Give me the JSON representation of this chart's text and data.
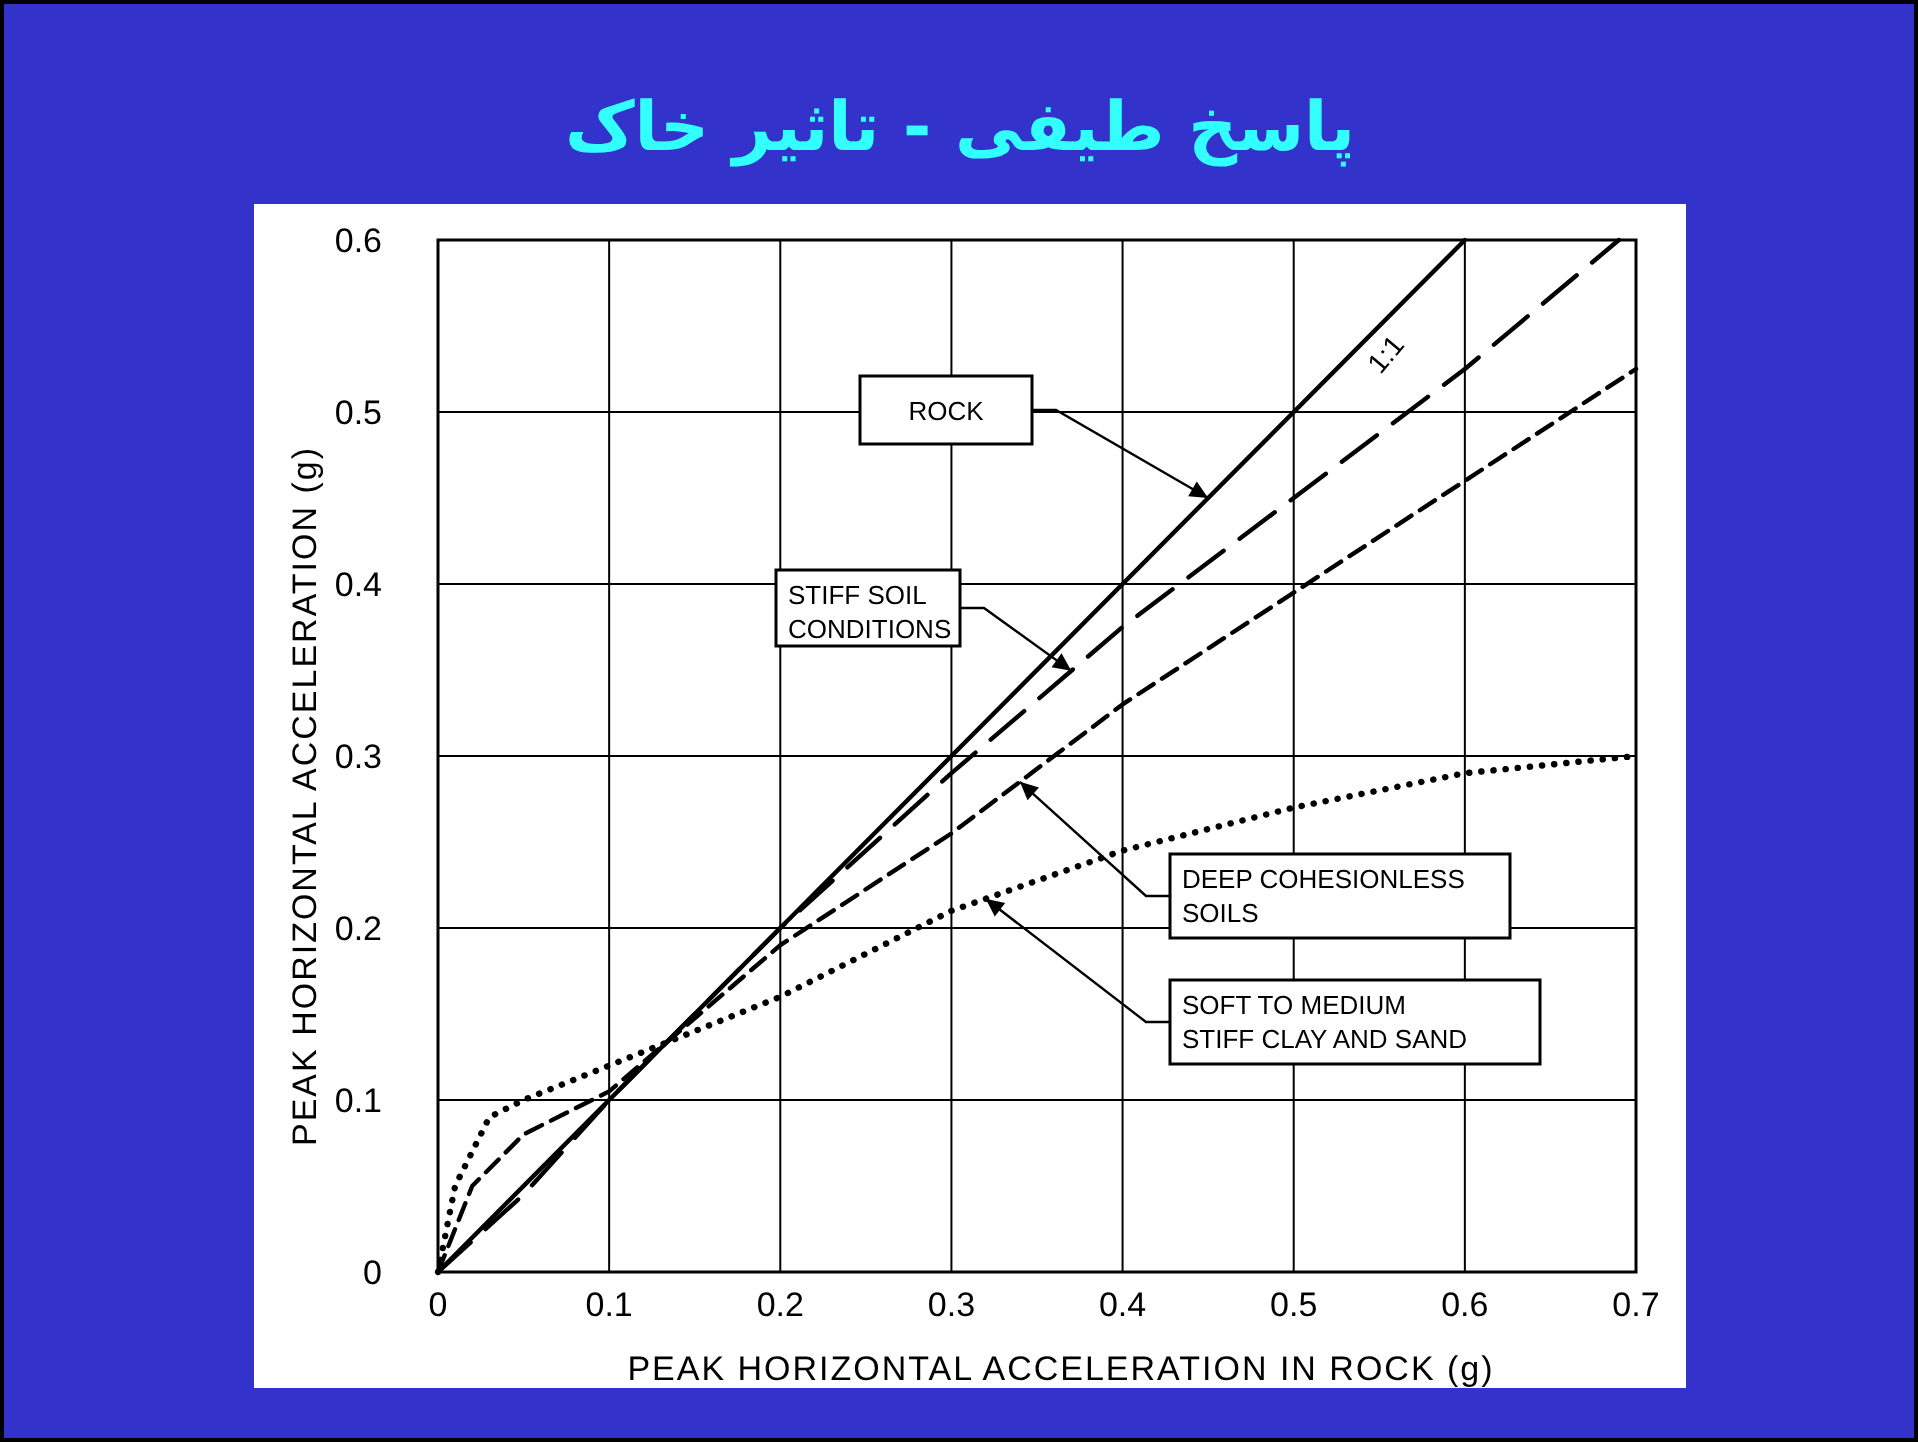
{
  "chart_data": {
    "type": "line",
    "title": "پاسخ طیفی - تاثیر خاک",
    "xlabel": "PEAK HORIZONTAL ACCELERATION IN ROCK (g)",
    "ylabel": "PEAK HORIZONTAL ACCELERATION (g)",
    "xlim": [
      0,
      0.7
    ],
    "ylim": [
      0,
      0.6
    ],
    "xticks": [
      0,
      0.1,
      0.2,
      0.3,
      0.4,
      0.5,
      0.6,
      0.7
    ],
    "yticks": [
      0,
      0.1,
      0.2,
      0.3,
      0.4,
      0.5,
      0.6
    ],
    "grid": true,
    "annotations": [
      {
        "text": "1:1",
        "x": 0.53,
        "y": 0.53
      }
    ],
    "series": [
      {
        "name": "ROCK",
        "color": "#000000",
        "line_style": "solid",
        "x": [
          0,
          0.6
        ],
        "values": [
          0,
          0.6
        ]
      },
      {
        "name": "STIFF SOIL CONDITIONS",
        "color": "#000000",
        "line_style": "dashed",
        "x": [
          0,
          0.05,
          0.1,
          0.2,
          0.3,
          0.4,
          0.5,
          0.6,
          0.69
        ],
        "values": [
          0,
          0.045,
          0.1,
          0.2,
          0.29,
          0.375,
          0.45,
          0.525,
          0.6
        ]
      },
      {
        "name": "DEEP COHESIONLESS SOILS",
        "color": "#000000",
        "line_style": "dashed",
        "x": [
          0,
          0.02,
          0.05,
          0.1,
          0.2,
          0.3,
          0.4,
          0.5,
          0.6,
          0.7
        ],
        "values": [
          0,
          0.05,
          0.08,
          0.105,
          0.19,
          0.255,
          0.33,
          0.395,
          0.46,
          0.525
        ]
      },
      {
        "name": "SOFT TO MEDIUM STIFF CLAY AND SAND",
        "color": "#000000",
        "line_style": "dotted",
        "x": [
          0,
          0.01,
          0.03,
          0.05,
          0.1,
          0.2,
          0.3,
          0.4,
          0.5,
          0.6,
          0.7
        ],
        "values": [
          0,
          0.05,
          0.09,
          0.1,
          0.12,
          0.16,
          0.21,
          0.245,
          0.27,
          0.29,
          0.3
        ]
      }
    ]
  }
}
